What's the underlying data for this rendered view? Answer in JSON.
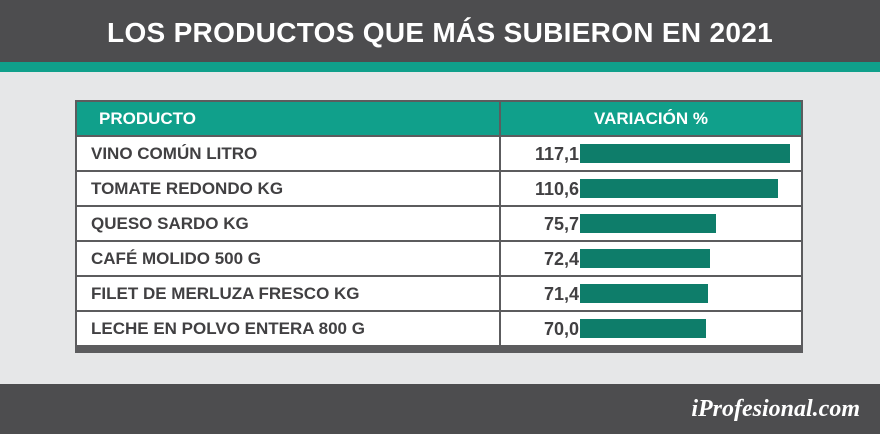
{
  "title": "LOS PRODUCTOS QUE MÁS SUBIERON EN 2021",
  "brand": "iProfesional.com",
  "colors": {
    "header_bg": "#4d4d4f",
    "accent": "#10a08b",
    "bar": "#0e7d6a",
    "background": "#e6e7e8",
    "text": "#414042"
  },
  "chart_data": {
    "type": "bar",
    "orientation": "horizontal",
    "columns": [
      "PRODUCTO",
      "VARIACIÓN %"
    ],
    "categories": [
      "VINO COMÚN LITRO",
      "TOMATE REDONDO KG",
      "QUESO SARDO KG",
      "CAFÉ MOLIDO 500 G",
      "FILET DE MERLUZA FRESCO KG",
      "LECHE EN POLVO ENTERA 800 G"
    ],
    "values": [
      117.1,
      110.6,
      75.7,
      72.4,
      71.4,
      70.0
    ],
    "value_labels": [
      "117,1",
      "110,6",
      "75,7",
      "72,4",
      "71,4",
      "70,0"
    ],
    "xlim": [
      0,
      117.1
    ]
  }
}
